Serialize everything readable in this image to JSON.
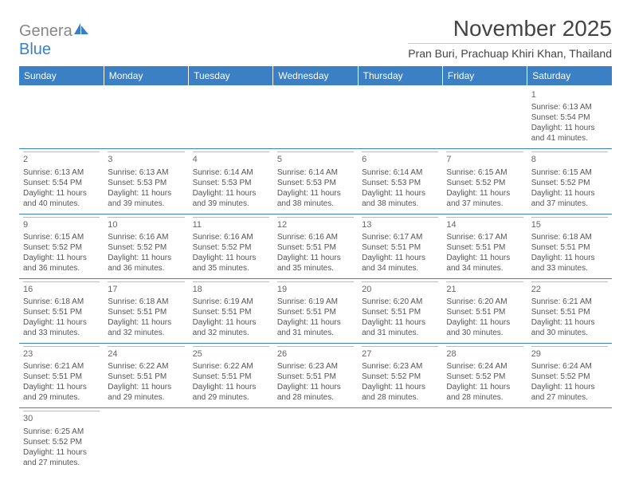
{
  "brand": {
    "part1": "Genera",
    "part2": "Blue"
  },
  "title": "November 2025",
  "location": "Pran Buri, Prachuap Khiri Khan, Thailand",
  "colors": {
    "header_bg": "#3b7fc4",
    "header_text": "#ffffff",
    "body_text": "#555555",
    "rule": "#3b7fc4"
  },
  "weekdays": [
    "Sunday",
    "Monday",
    "Tuesday",
    "Wednesday",
    "Thursday",
    "Friday",
    "Saturday"
  ],
  "weeks": [
    [
      null,
      null,
      null,
      null,
      null,
      null,
      {
        "n": "1",
        "sr": "6:13 AM",
        "ss": "5:54 PM",
        "dl": "11 hours and 41 minutes."
      }
    ],
    [
      {
        "n": "2",
        "sr": "6:13 AM",
        "ss": "5:54 PM",
        "dl": "11 hours and 40 minutes."
      },
      {
        "n": "3",
        "sr": "6:13 AM",
        "ss": "5:53 PM",
        "dl": "11 hours and 39 minutes."
      },
      {
        "n": "4",
        "sr": "6:14 AM",
        "ss": "5:53 PM",
        "dl": "11 hours and 39 minutes."
      },
      {
        "n": "5",
        "sr": "6:14 AM",
        "ss": "5:53 PM",
        "dl": "11 hours and 38 minutes."
      },
      {
        "n": "6",
        "sr": "6:14 AM",
        "ss": "5:53 PM",
        "dl": "11 hours and 38 minutes."
      },
      {
        "n": "7",
        "sr": "6:15 AM",
        "ss": "5:52 PM",
        "dl": "11 hours and 37 minutes."
      },
      {
        "n": "8",
        "sr": "6:15 AM",
        "ss": "5:52 PM",
        "dl": "11 hours and 37 minutes."
      }
    ],
    [
      {
        "n": "9",
        "sr": "6:15 AM",
        "ss": "5:52 PM",
        "dl": "11 hours and 36 minutes."
      },
      {
        "n": "10",
        "sr": "6:16 AM",
        "ss": "5:52 PM",
        "dl": "11 hours and 36 minutes."
      },
      {
        "n": "11",
        "sr": "6:16 AM",
        "ss": "5:52 PM",
        "dl": "11 hours and 35 minutes."
      },
      {
        "n": "12",
        "sr": "6:16 AM",
        "ss": "5:51 PM",
        "dl": "11 hours and 35 minutes."
      },
      {
        "n": "13",
        "sr": "6:17 AM",
        "ss": "5:51 PM",
        "dl": "11 hours and 34 minutes."
      },
      {
        "n": "14",
        "sr": "6:17 AM",
        "ss": "5:51 PM",
        "dl": "11 hours and 34 minutes."
      },
      {
        "n": "15",
        "sr": "6:18 AM",
        "ss": "5:51 PM",
        "dl": "11 hours and 33 minutes."
      }
    ],
    [
      {
        "n": "16",
        "sr": "6:18 AM",
        "ss": "5:51 PM",
        "dl": "11 hours and 33 minutes."
      },
      {
        "n": "17",
        "sr": "6:18 AM",
        "ss": "5:51 PM",
        "dl": "11 hours and 32 minutes."
      },
      {
        "n": "18",
        "sr": "6:19 AM",
        "ss": "5:51 PM",
        "dl": "11 hours and 32 minutes."
      },
      {
        "n": "19",
        "sr": "6:19 AM",
        "ss": "5:51 PM",
        "dl": "11 hours and 31 minutes."
      },
      {
        "n": "20",
        "sr": "6:20 AM",
        "ss": "5:51 PM",
        "dl": "11 hours and 31 minutes."
      },
      {
        "n": "21",
        "sr": "6:20 AM",
        "ss": "5:51 PM",
        "dl": "11 hours and 30 minutes."
      },
      {
        "n": "22",
        "sr": "6:21 AM",
        "ss": "5:51 PM",
        "dl": "11 hours and 30 minutes."
      }
    ],
    [
      {
        "n": "23",
        "sr": "6:21 AM",
        "ss": "5:51 PM",
        "dl": "11 hours and 29 minutes."
      },
      {
        "n": "24",
        "sr": "6:22 AM",
        "ss": "5:51 PM",
        "dl": "11 hours and 29 minutes."
      },
      {
        "n": "25",
        "sr": "6:22 AM",
        "ss": "5:51 PM",
        "dl": "11 hours and 29 minutes."
      },
      {
        "n": "26",
        "sr": "6:23 AM",
        "ss": "5:51 PM",
        "dl": "11 hours and 28 minutes."
      },
      {
        "n": "27",
        "sr": "6:23 AM",
        "ss": "5:52 PM",
        "dl": "11 hours and 28 minutes."
      },
      {
        "n": "28",
        "sr": "6:24 AM",
        "ss": "5:52 PM",
        "dl": "11 hours and 28 minutes."
      },
      {
        "n": "29",
        "sr": "6:24 AM",
        "ss": "5:52 PM",
        "dl": "11 hours and 27 minutes."
      }
    ],
    [
      {
        "n": "30",
        "sr": "6:25 AM",
        "ss": "5:52 PM",
        "dl": "11 hours and 27 minutes."
      },
      null,
      null,
      null,
      null,
      null,
      null
    ]
  ],
  "labels": {
    "sunrise": "Sunrise:",
    "sunset": "Sunset:",
    "daylight": "Daylight:"
  }
}
